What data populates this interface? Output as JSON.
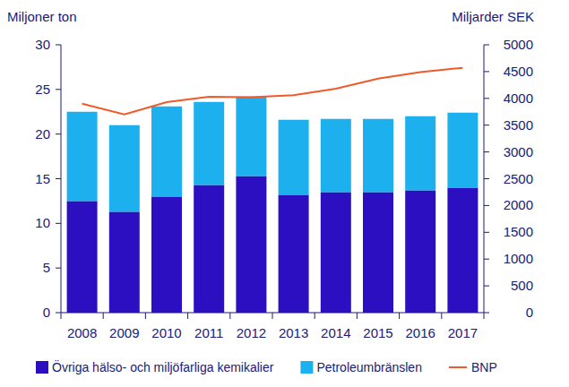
{
  "chart_data": {
    "type": "bar",
    "stacked": true,
    "grid": false,
    "legend": "bottom",
    "y_label": "Miljoner ton",
    "y2_label": "Miljarder SEK",
    "categories": [
      "2008",
      "2009",
      "2010",
      "2011",
      "2012",
      "2013",
      "2014",
      "2015",
      "2016",
      "2017"
    ],
    "ylim": [
      0,
      30
    ],
    "yticks": [
      0,
      5,
      10,
      15,
      20,
      25,
      30
    ],
    "y2lim": [
      0,
      5000
    ],
    "y2ticks": [
      0,
      500,
      1000,
      1500,
      2000,
      2500,
      3000,
      3500,
      4000,
      4500,
      5000
    ],
    "series": [
      {
        "name": "Övriga hälso- och miljöfarliga kemikalier",
        "color": "#2b0fc0",
        "values": [
          12.5,
          11.3,
          13.0,
          14.3,
          15.3,
          13.2,
          13.5,
          13.5,
          13.7,
          14.0
        ]
      },
      {
        "name": "Petroleumbränslen",
        "color": "#1cb0ee",
        "values": [
          10.0,
          9.7,
          10.1,
          9.3,
          8.9,
          8.4,
          8.2,
          8.2,
          8.3,
          8.4
        ]
      },
      {
        "name": "BNP",
        "type": "line",
        "axis": "y2",
        "color": "#f05a2a",
        "values": [
          3900,
          3700,
          3930,
          4030,
          4020,
          4060,
          4180,
          4370,
          4490,
          4570
        ]
      }
    ]
  }
}
